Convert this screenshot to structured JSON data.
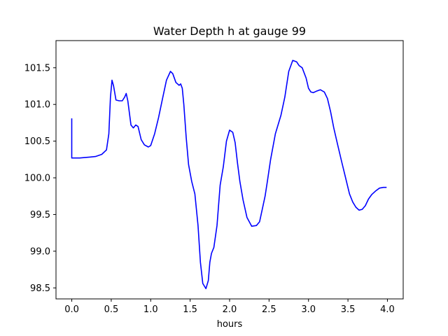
{
  "chart_data": {
    "type": "line",
    "title": "Water Depth h at gauge 99",
    "xlabel": "hours",
    "ylabel": "",
    "xlim": [
      -0.2,
      4.2
    ],
    "ylim": [
      98.35,
      101.87
    ],
    "xticks": [
      0.0,
      0.5,
      1.0,
      1.5,
      2.0,
      2.5,
      3.0,
      3.5,
      4.0
    ],
    "xtick_labels": [
      "0.0",
      "0.5",
      "1.0",
      "1.5",
      "2.0",
      "2.5",
      "3.0",
      "3.5",
      "4.0"
    ],
    "yticks": [
      98.5,
      99.0,
      99.5,
      100.0,
      100.5,
      101.0,
      101.5
    ],
    "ytick_labels": [
      "98.5",
      "99.0",
      "99.5",
      "100.0",
      "100.5",
      "101.0",
      "101.5"
    ],
    "grid": false,
    "series": [
      {
        "color": "#0000ff",
        "x": [
          0.0,
          0.0,
          0.0,
          0.1,
          0.2,
          0.3,
          0.38,
          0.44,
          0.47,
          0.49,
          0.51,
          0.53,
          0.56,
          0.6,
          0.64,
          0.67,
          0.69,
          0.71,
          0.75,
          0.78,
          0.81,
          0.84,
          0.88,
          0.92,
          0.97,
          1.0,
          1.05,
          1.1,
          1.15,
          1.2,
          1.25,
          1.28,
          1.32,
          1.36,
          1.38,
          1.4,
          1.42,
          1.45,
          1.48,
          1.52,
          1.56,
          1.6,
          1.63,
          1.66,
          1.7,
          1.73,
          1.75,
          1.77,
          1.8,
          1.84,
          1.88,
          1.92,
          1.96,
          2.0,
          2.04,
          2.07,
          2.1,
          2.13,
          2.17,
          2.22,
          2.28,
          2.34,
          2.38,
          2.41,
          2.45,
          2.48,
          2.52,
          2.58,
          2.65,
          2.7,
          2.75,
          2.8,
          2.85,
          2.88,
          2.92,
          2.97,
          3.0,
          3.03,
          3.06,
          3.1,
          3.15,
          3.2,
          3.24,
          3.28,
          3.32,
          3.37,
          3.42,
          3.47,
          3.52,
          3.56,
          3.6,
          3.64,
          3.68,
          3.72,
          3.76,
          3.8,
          3.85,
          3.9,
          3.95,
          3.99
        ],
        "y": [
          100.81,
          100.27,
          100.27,
          100.27,
          100.28,
          100.29,
          100.32,
          100.38,
          100.6,
          101.1,
          101.33,
          101.25,
          101.06,
          101.05,
          101.05,
          101.1,
          101.15,
          101.05,
          100.72,
          100.68,
          100.72,
          100.7,
          100.52,
          100.45,
          100.42,
          100.44,
          100.6,
          100.82,
          101.08,
          101.33,
          101.45,
          101.42,
          101.3,
          101.26,
          101.28,
          101.22,
          101.0,
          100.55,
          100.18,
          99.95,
          99.78,
          99.35,
          98.85,
          98.56,
          98.49,
          98.6,
          98.85,
          98.97,
          99.05,
          99.35,
          99.9,
          100.15,
          100.5,
          100.65,
          100.62,
          100.48,
          100.2,
          99.95,
          99.7,
          99.46,
          99.34,
          99.35,
          99.4,
          99.55,
          99.75,
          99.96,
          100.25,
          100.6,
          100.85,
          101.1,
          101.45,
          101.6,
          101.58,
          101.53,
          101.5,
          101.36,
          101.22,
          101.17,
          101.16,
          101.18,
          101.2,
          101.17,
          101.08,
          100.9,
          100.68,
          100.45,
          100.22,
          100.0,
          99.78,
          99.67,
          99.6,
          99.56,
          99.57,
          99.62,
          99.71,
          99.77,
          99.82,
          99.86,
          99.87,
          99.87
        ]
      }
    ]
  }
}
